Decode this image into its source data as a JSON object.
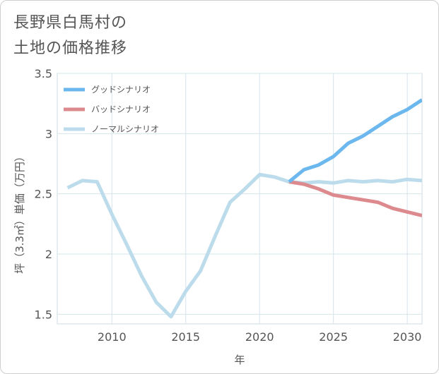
{
  "title_lines": [
    "長野県白馬村の",
    "土地の価格推移"
  ],
  "chart_data": {
    "type": "line",
    "title": "長野県白馬村の土地の価格推移",
    "xlabel": "年",
    "ylabel": "坪（3.3㎡）単価（万円）",
    "xlim": [
      2006.3,
      2031
    ],
    "ylim": [
      1.42,
      3.5
    ],
    "xticks": [
      2010,
      2015,
      2020,
      2025,
      2030
    ],
    "yticks": [
      1.5,
      2,
      2.5,
      3,
      3.5
    ],
    "xtick_labels": [
      "2010",
      "2015",
      "2020",
      "2025",
      "2030"
    ],
    "ytick_labels": [
      "1.5",
      "2",
      "2.5",
      "3",
      "3.5"
    ],
    "legend_position": "top-left",
    "series": [
      {
        "name": "グッドシナリオ",
        "color": "#6cb8ee",
        "x": [
          2022,
          2023,
          2024,
          2025,
          2026,
          2027,
          2028,
          2029,
          2030,
          2031
        ],
        "values": [
          2.6,
          2.7,
          2.74,
          2.81,
          2.92,
          2.98,
          3.06,
          3.14,
          3.2,
          3.28
        ]
      },
      {
        "name": "バッドシナリオ",
        "color": "#dd8a8e",
        "x": [
          2022,
          2023,
          2024,
          2025,
          2026,
          2027,
          2028,
          2029,
          2030,
          2031
        ],
        "values": [
          2.6,
          2.58,
          2.54,
          2.49,
          2.47,
          2.45,
          2.43,
          2.38,
          2.35,
          2.32
        ]
      },
      {
        "name": "ノーマルシナリオ",
        "color": "#bcdcec",
        "x": [
          2007,
          2008,
          2009,
          2010,
          2011,
          2012,
          2013,
          2014,
          2015,
          2016,
          2017,
          2018,
          2019,
          2020,
          2021,
          2022,
          2023,
          2024,
          2025,
          2026,
          2027,
          2028,
          2029,
          2030,
          2031
        ],
        "values": [
          2.55,
          2.61,
          2.6,
          2.33,
          2.08,
          1.82,
          1.6,
          1.48,
          1.69,
          1.86,
          2.15,
          2.43,
          2.54,
          2.66,
          2.64,
          2.6,
          2.59,
          2.6,
          2.59,
          2.61,
          2.6,
          2.61,
          2.6,
          2.62,
          2.61
        ]
      }
    ]
  }
}
